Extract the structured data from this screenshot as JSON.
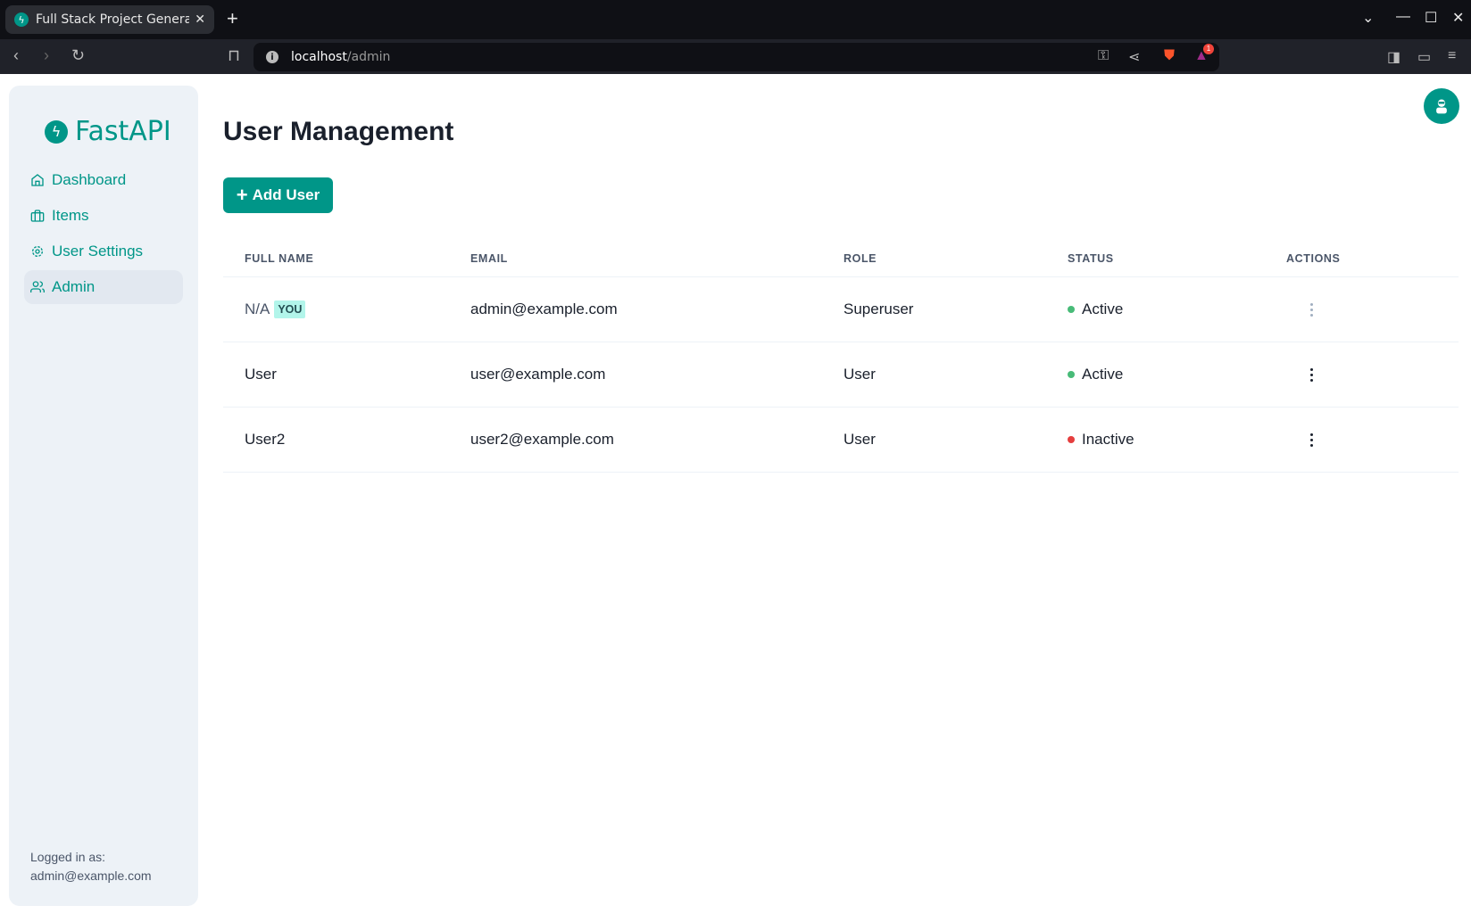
{
  "browser": {
    "tab_title": "Full Stack Project Generator",
    "url_host": "localhost",
    "url_path": "/admin",
    "notification_count": "1"
  },
  "sidebar": {
    "logo": "FastAPI",
    "items": [
      {
        "label": "Dashboard",
        "icon": "home-icon"
      },
      {
        "label": "Items",
        "icon": "briefcase-icon"
      },
      {
        "label": "User Settings",
        "icon": "gear-icon"
      },
      {
        "label": "Admin",
        "icon": "users-icon",
        "active": true
      }
    ],
    "footer_label": "Logged in as:",
    "footer_email": "admin@example.com"
  },
  "main": {
    "title": "User Management",
    "add_button": "Add User",
    "columns": [
      "FULL NAME",
      "EMAIL",
      "ROLE",
      "STATUS",
      "ACTIONS"
    ],
    "rows": [
      {
        "name": "N/A",
        "badge": "YOU",
        "email": "admin@example.com",
        "role": "Superuser",
        "status": "Active",
        "actions_disabled": true
      },
      {
        "name": "User",
        "email": "user@example.com",
        "role": "User",
        "status": "Active",
        "actions_disabled": false
      },
      {
        "name": "User2",
        "email": "user2@example.com",
        "role": "User",
        "status": "Inactive",
        "actions_disabled": false
      }
    ]
  },
  "colors": {
    "accent": "#009688",
    "active": "#48bb78",
    "inactive": "#e53e3e"
  }
}
